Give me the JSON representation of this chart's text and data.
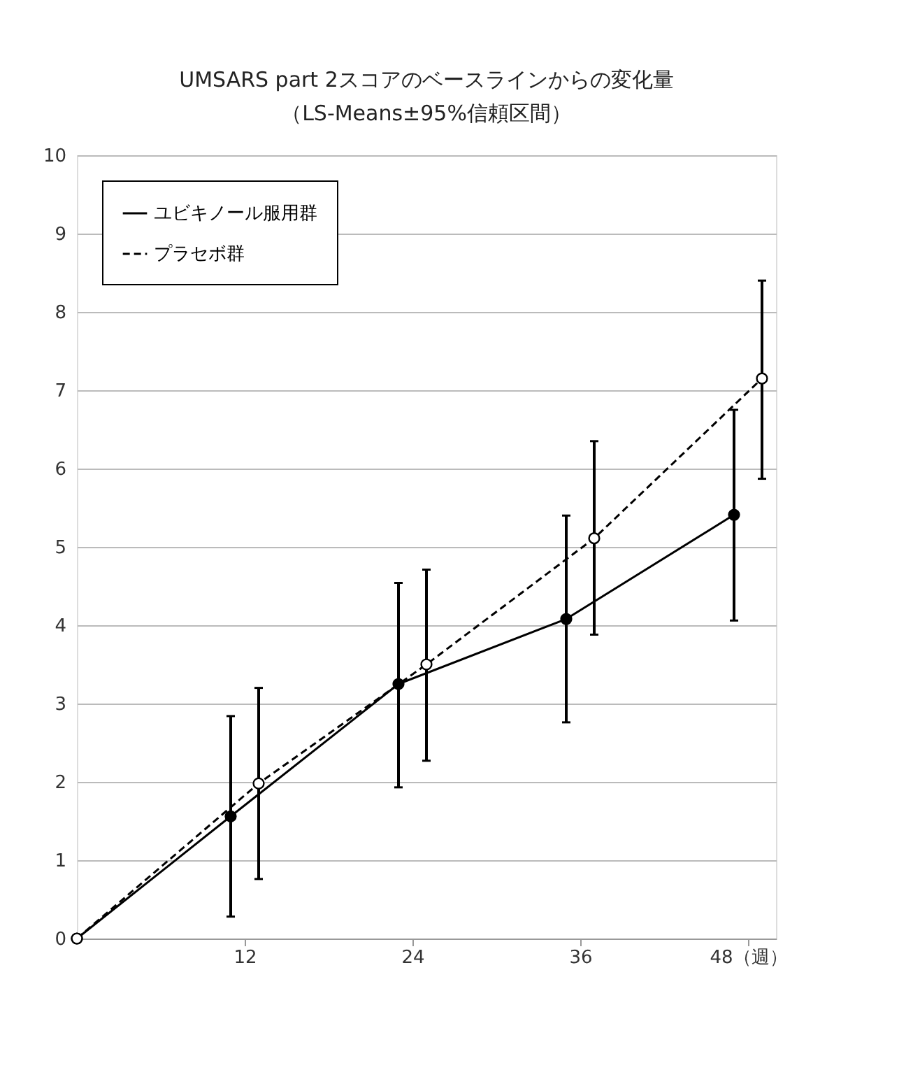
{
  "chart_data": {
    "type": "line",
    "title": [
      "UMSARS part 2スコアのベースラインからの変化量",
      "（LS-Means±95%信頼区間）"
    ],
    "xlim": [
      0,
      50
    ],
    "xticks": [
      12,
      24,
      36,
      {
        "value": 48,
        "label": "48（週）"
      }
    ],
    "ylim": [
      0,
      10
    ],
    "yticks": [
      0,
      1,
      2,
      3,
      4,
      5,
      6,
      7,
      8,
      9,
      10
    ],
    "grid": "y",
    "legend": "top left",
    "marker": "circle",
    "series": [
      {
        "name": "ユビキノール服用群",
        "color": "#000000",
        "line_style": "solid",
        "x": [
          0,
          11,
          23,
          35,
          47
        ],
        "values": [
          0,
          1.56,
          3.25,
          4.08,
          5.41
        ],
        "errors": [
          null,
          [
            0.28,
            2.84
          ],
          [
            1.93,
            4.54
          ],
          [
            2.76,
            5.4
          ],
          [
            4.06,
            6.75
          ]
        ]
      },
      {
        "name": "プラセボ群",
        "color": "#000000",
        "line_style": "dashed",
        "x": [
          0,
          13,
          25,
          37,
          49
        ],
        "values": [
          0,
          1.98,
          3.5,
          5.11,
          7.15
        ],
        "errors": [
          null,
          [
            0.76,
            3.2
          ],
          [
            2.27,
            4.71
          ],
          [
            3.88,
            6.35
          ],
          [
            5.87,
            8.4
          ]
        ]
      }
    ]
  }
}
